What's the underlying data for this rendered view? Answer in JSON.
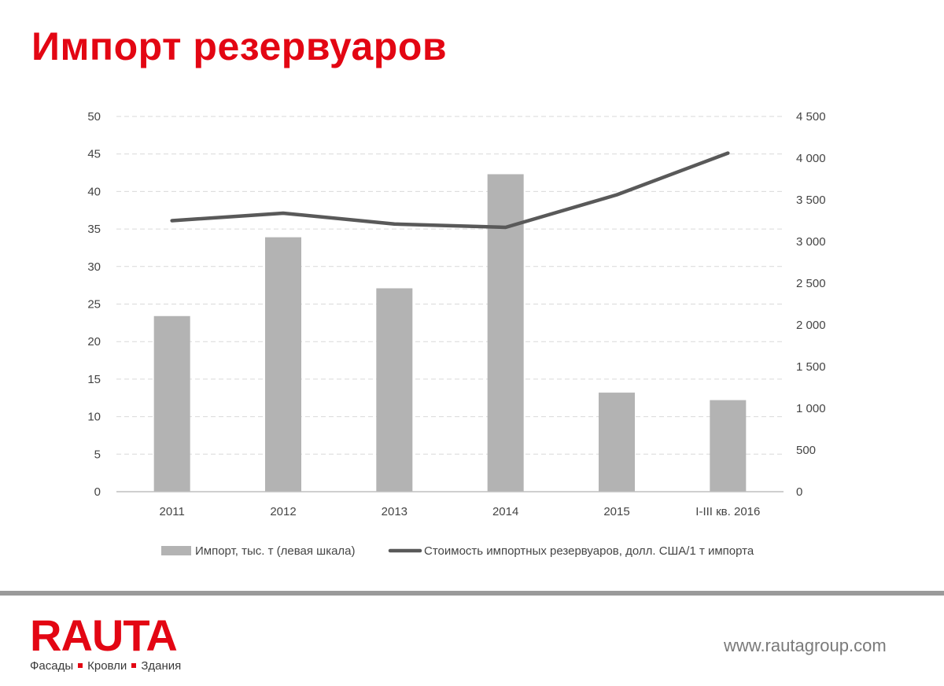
{
  "title": "Импорт резервуаров",
  "colors": {
    "accent": "#e30613",
    "bars": "#b3b3b3",
    "line": "#595959",
    "grid": "#d9d9d9",
    "axis": "#bfbfbf"
  },
  "chart_data": {
    "type": "bar",
    "categories": [
      "2011",
      "2012",
      "2013",
      "2014",
      "2015",
      "I-III кв. 2016"
    ],
    "series": [
      {
        "name": "Импорт, тыс. т (левая шкала)",
        "type": "bar",
        "axis": "left",
        "values": [
          23.4,
          33.9,
          27.1,
          42.3,
          13.2,
          12.2
        ]
      },
      {
        "name": "Стоимость импортных резервуаров, долл. США/1 т импорта",
        "type": "line",
        "axis": "right",
        "values": [
          3250,
          3340,
          3210,
          3170,
          3560,
          4060
        ]
      }
    ],
    "left_axis": {
      "ylim": [
        0,
        50
      ],
      "ticks": [
        "0",
        "5",
        "10",
        "15",
        "20",
        "25",
        "30",
        "35",
        "40",
        "45",
        "50"
      ]
    },
    "right_axis": {
      "ylim": [
        0,
        4500
      ],
      "ticks": [
        "0",
        "500",
        "1 000",
        "1 500",
        "2 000",
        "2 500",
        "3 000",
        "3 500",
        "4 000",
        "4 500"
      ]
    },
    "grid": true,
    "legend_position": "bottom"
  },
  "footer": {
    "logo_text": "RAUTA",
    "tagline": [
      "Фасады",
      "Кровли",
      "Здания"
    ],
    "website": "www.rautagroup.com"
  }
}
